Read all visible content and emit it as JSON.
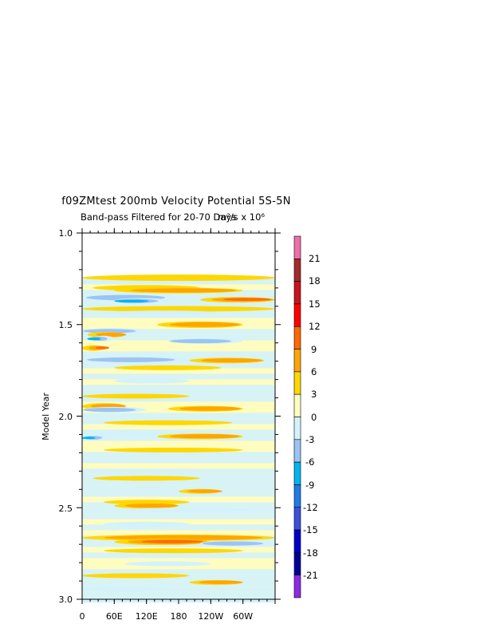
{
  "chart_data": {
    "type": "heatmap",
    "title": "f09ZMtest 200mb Velocity Potential 5S-5N",
    "subtitle": "Band-pass Filtered for 20-70 Days",
    "units_label": "m²/s x 10⁶",
    "ylabel": "Model Year",
    "xlabel": "",
    "x_ticks": [
      "0",
      "60E",
      "120E",
      "180",
      "120W",
      "60W"
    ],
    "x_range": [
      0,
      360
    ],
    "y_ticks": [
      "1.0",
      "1.5",
      "2.0",
      "2.5",
      "3.0"
    ],
    "y_range": [
      1.0,
      3.0
    ],
    "y_data_start": 1.25,
    "colorbar": {
      "labels": [
        "21",
        "18",
        "15",
        "12",
        "9",
        "6",
        "3",
        "0",
        "-3",
        "-6",
        "-9",
        "-12",
        "-15",
        "-18",
        "-21"
      ],
      "colors": [
        "#f06eaa",
        "#a52a2a",
        "#c8141e",
        "#ff0000",
        "#ff6a00",
        "#ffa500",
        "#ffd700",
        "#fffcc0",
        "#d3f2fc",
        "#9cc4f2",
        "#00b4f0",
        "#1e7ce6",
        "#3c50dc",
        "#0000c8",
        "#000096",
        "#8b2be2"
      ]
    },
    "bands": [
      {
        "year": 1.26,
        "level": 1,
        "x0": 0,
        "x1": 360,
        "w": 1.6
      },
      {
        "year": 1.31,
        "level": 1,
        "x0": 20,
        "x1": 220,
        "w": 1.4
      },
      {
        "year": 1.33,
        "level": 2,
        "x0": 60,
        "x1": 300,
        "w": 1.4
      },
      {
        "year": 1.36,
        "level": -2,
        "x0": 0,
        "x1": 180,
        "w": 1.8
      },
      {
        "year": 1.38,
        "level": -3,
        "x0": 60,
        "x1": 160,
        "w": 1.4
      },
      {
        "year": 1.39,
        "level": 3,
        "x0": 220,
        "x1": 360,
        "w": 1.4
      },
      {
        "year": 1.43,
        "level": 1,
        "x0": 0,
        "x1": 360,
        "w": 1.4
      },
      {
        "year": 1.45,
        "level": -1,
        "x0": 40,
        "x1": 260,
        "w": 1.2
      },
      {
        "year": 1.52,
        "level": 2,
        "x0": 140,
        "x1": 300,
        "w": 1.6
      },
      {
        "year": 1.54,
        "level": -2,
        "x0": 0,
        "x1": 120,
        "w": 1.4
      },
      {
        "year": 1.56,
        "level": 2,
        "x0": 10,
        "x1": 80,
        "w": 1.4
      },
      {
        "year": 1.58,
        "level": -3,
        "x0": 20,
        "x1": 60,
        "w": 1.4
      },
      {
        "year": 1.63,
        "level": 3,
        "x0": 0,
        "x1": 40,
        "w": 1.4
      },
      {
        "year": 1.61,
        "level": -2,
        "x0": 160,
        "x1": 300,
        "w": 1.4
      },
      {
        "year": 1.7,
        "level": -2,
        "x0": 0,
        "x1": 200,
        "w": 1.6
      },
      {
        "year": 1.72,
        "level": 2,
        "x0": 200,
        "x1": 340,
        "w": 1.4
      },
      {
        "year": 1.75,
        "level": 1,
        "x0": 60,
        "x1": 260,
        "w": 1.2
      },
      {
        "year": 1.82,
        "level": -1,
        "x0": 60,
        "x1": 200,
        "w": 1.2
      },
      {
        "year": 1.9,
        "level": 1,
        "x0": 0,
        "x1": 200,
        "w": 1.2
      },
      {
        "year": 1.95,
        "level": 2,
        "x0": 0,
        "x1": 80,
        "w": 1.6
      },
      {
        "year": 1.97,
        "level": -2,
        "x0": 0,
        "x1": 120,
        "w": 1.4
      },
      {
        "year": 1.98,
        "level": 2,
        "x0": 160,
        "x1": 300,
        "w": 1.4
      },
      {
        "year": 2.05,
        "level": 1,
        "x0": 40,
        "x1": 280,
        "w": 1.2
      },
      {
        "year": 2.1,
        "level": -1,
        "x0": 0,
        "x1": 200,
        "w": 1.4
      },
      {
        "year": 2.12,
        "level": -3,
        "x0": 10,
        "x1": 50,
        "w": 1.2
      },
      {
        "year": 2.13,
        "level": 2,
        "x0": 140,
        "x1": 300,
        "w": 1.4
      },
      {
        "year": 2.2,
        "level": 1,
        "x0": 40,
        "x1": 300,
        "w": 1.2
      },
      {
        "year": 2.35,
        "level": 1,
        "x0": 20,
        "x1": 220,
        "w": 1.2
      },
      {
        "year": 2.43,
        "level": 2,
        "x0": 180,
        "x1": 260,
        "w": 1.2
      },
      {
        "year": 2.48,
        "level": 1,
        "x0": 40,
        "x1": 200,
        "w": 1.2
      },
      {
        "year": 2.5,
        "level": 2,
        "x0": 60,
        "x1": 180,
        "w": 1.4
      },
      {
        "year": 2.53,
        "level": -1,
        "x0": 80,
        "x1": 320,
        "w": 1.2
      },
      {
        "year": 2.6,
        "level": -1,
        "x0": 40,
        "x1": 200,
        "w": 1.2
      },
      {
        "year": 2.68,
        "level": 2,
        "x0": 0,
        "x1": 360,
        "w": 1.6
      },
      {
        "year": 2.7,
        "level": 3,
        "x0": 60,
        "x1": 240,
        "w": 1.6
      },
      {
        "year": 2.72,
        "level": -2,
        "x0": 220,
        "x1": 360,
        "w": 1.4
      },
      {
        "year": 2.75,
        "level": 1,
        "x0": 40,
        "x1": 300,
        "w": 1.2
      },
      {
        "year": 2.82,
        "level": -1,
        "x0": 80,
        "x1": 240,
        "w": 1.2
      },
      {
        "year": 2.88,
        "level": 1,
        "x0": 0,
        "x1": 200,
        "w": 1.2
      },
      {
        "year": 2.93,
        "level": 2,
        "x0": 200,
        "x1": 300,
        "w": 1.2
      },
      {
        "year": 2.95,
        "level": -1,
        "x0": 0,
        "x1": 160,
        "w": 1.2
      }
    ]
  }
}
